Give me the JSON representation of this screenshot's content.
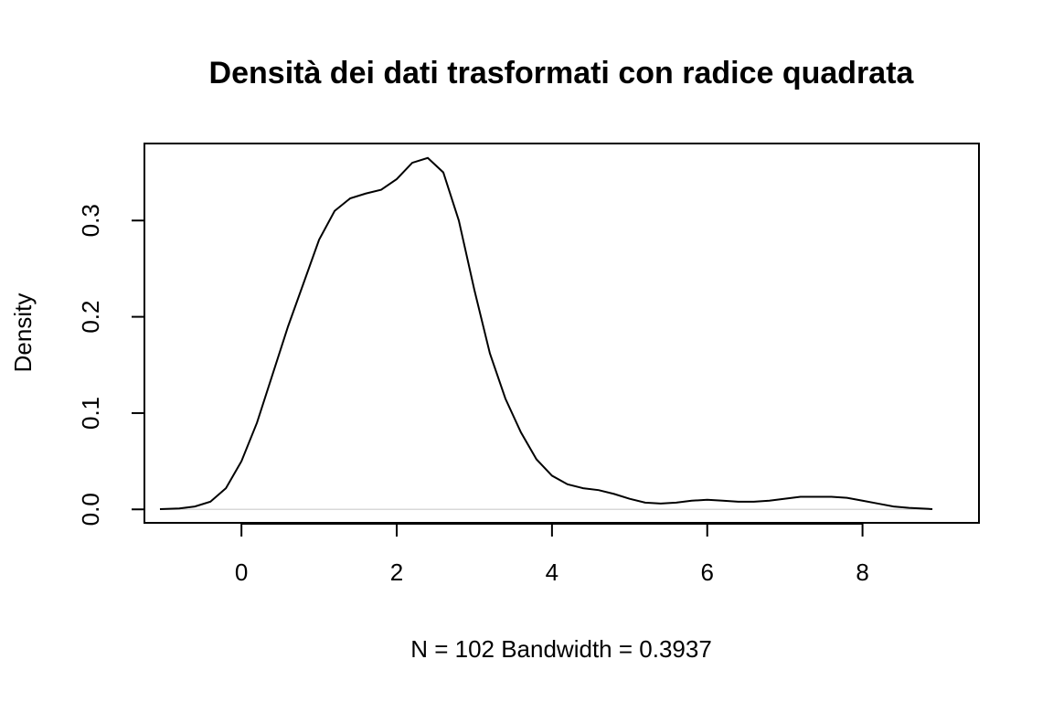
{
  "chart_data": {
    "type": "line",
    "title": "Densità dei dati trasformati con radice quadrata",
    "xlabel": "N = 102   Bandwidth = 0.3937",
    "ylabel": "Density",
    "xlim": [
      -1.25,
      9.5
    ],
    "ylim": [
      -0.014,
      0.38
    ],
    "x_ticks": [
      0,
      2,
      4,
      6,
      8
    ],
    "x_tick_labels": [
      "0",
      "2",
      "4",
      "6",
      "8"
    ],
    "y_ticks": [
      0.0,
      0.1,
      0.2,
      0.3
    ],
    "y_tick_labels": [
      "0.0",
      "0.1",
      "0.2",
      "0.3"
    ],
    "grid": false,
    "reference_line_y": 0,
    "series": [
      {
        "x": [
          -1.05,
          -0.8,
          -0.6,
          -0.4,
          -0.2,
          0.0,
          0.2,
          0.4,
          0.6,
          0.8,
          1.0,
          1.2,
          1.4,
          1.6,
          1.8,
          2.0,
          2.2,
          2.4,
          2.6,
          2.8,
          3.0,
          3.2,
          3.4,
          3.6,
          3.8,
          4.0,
          4.2,
          4.4,
          4.6,
          4.8,
          5.0,
          5.2,
          5.4,
          5.6,
          5.8,
          6.0,
          6.2,
          6.4,
          6.6,
          6.8,
          7.0,
          7.2,
          7.4,
          7.6,
          7.8,
          8.0,
          8.2,
          8.4,
          8.6,
          8.9
        ],
        "y": [
          0.0003,
          0.001,
          0.003,
          0.008,
          0.022,
          0.05,
          0.09,
          0.14,
          0.19,
          0.235,
          0.28,
          0.31,
          0.323,
          0.328,
          0.332,
          0.343,
          0.36,
          0.365,
          0.35,
          0.3,
          0.228,
          0.162,
          0.115,
          0.08,
          0.052,
          0.035,
          0.026,
          0.022,
          0.02,
          0.016,
          0.011,
          0.007,
          0.006,
          0.007,
          0.009,
          0.01,
          0.009,
          0.008,
          0.008,
          0.009,
          0.011,
          0.013,
          0.013,
          0.013,
          0.012,
          0.009,
          0.006,
          0.003,
          0.0015,
          0.0003
        ]
      }
    ]
  }
}
